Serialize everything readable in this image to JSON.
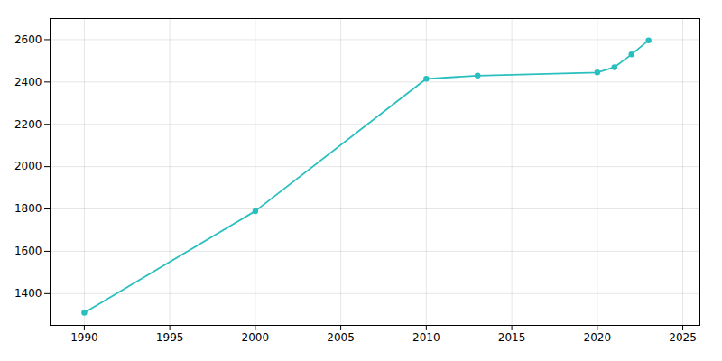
{
  "chart_data": {
    "type": "line",
    "x": [
      1990,
      2000,
      2010,
      2013,
      2020,
      2021,
      2022,
      2023
    ],
    "values": [
      1310,
      1790,
      2415,
      2430,
      2445,
      2470,
      2530,
      2597
    ],
    "color": "#2abfbf",
    "marker": "circle",
    "xlim": [
      1988,
      2026
    ],
    "ylim": [
      1250,
      2700
    ],
    "xticks": [
      1990,
      1995,
      2000,
      2005,
      2010,
      2015,
      2020,
      2025
    ],
    "yticks": [
      1400,
      1600,
      1800,
      2000,
      2200,
      2400,
      2600
    ],
    "grid": true
  }
}
